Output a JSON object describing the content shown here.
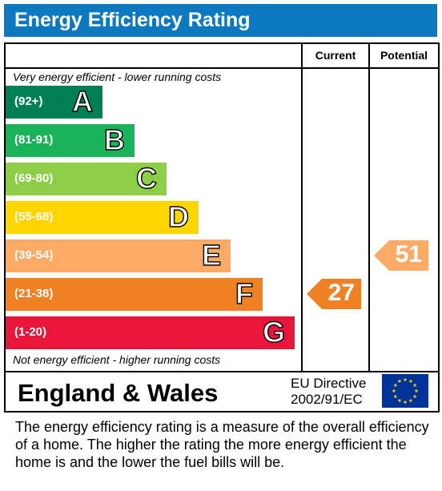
{
  "title": "Energy Efficiency Rating",
  "columns": {
    "current": "Current",
    "potential": "Potential"
  },
  "top_caption": "Very energy efficient - lower running costs",
  "bottom_caption": "Not energy efficient - higher running costs",
  "footer": {
    "region": "England & Wales",
    "directive_line1": "EU Directive",
    "directive_line2": "2002/91/EC",
    "flag_icon": "eu-flag-icon"
  },
  "description": "The energy efficiency rating is a measure of the overall efficiency of a home.  The higher the rating the more energy efficient the home is and the lower the fuel bills will be.",
  "chart_data": {
    "type": "bar",
    "bands": [
      {
        "letter": "A",
        "range": "(92+)",
        "color": "#008054"
      },
      {
        "letter": "B",
        "range": "(81-91)",
        "color": "#19b459"
      },
      {
        "letter": "C",
        "range": "(69-80)",
        "color": "#8dce46"
      },
      {
        "letter": "D",
        "range": "(55-68)",
        "color": "#ffd500"
      },
      {
        "letter": "E",
        "range": "(39-54)",
        "color": "#fcaa65"
      },
      {
        "letter": "F",
        "range": "(21-38)",
        "color": "#ef8023"
      },
      {
        "letter": "G",
        "range": "(1-20)",
        "color": "#e9153b"
      }
    ],
    "ratings": {
      "current": {
        "value": 27,
        "band": "F",
        "color": "#ef8023"
      },
      "potential": {
        "value": 51,
        "band": "E",
        "color": "#fcaa65"
      }
    }
  }
}
